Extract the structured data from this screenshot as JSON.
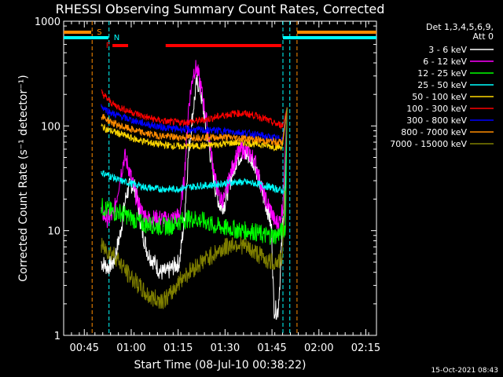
{
  "chart_data": {
    "type": "line",
    "title": "RHESSI Observing Summary Count Rates, Corrected",
    "xlabel": "Start Time (08-Jul-10 00:38:22)",
    "ylabel": "Corrected Count Rate (s⁻¹ detector⁻¹)",
    "yscale": "log",
    "ylim": [
      1,
      1000
    ],
    "xlim_minutes": [
      0,
      100
    ],
    "x_ticks": [
      {
        "t": 6.6,
        "label": "00:45"
      },
      {
        "t": 21.6,
        "label": "01:00"
      },
      {
        "t": 36.6,
        "label": "01:15"
      },
      {
        "t": 51.6,
        "label": "01:30"
      },
      {
        "t": 66.6,
        "label": "01:45"
      },
      {
        "t": 81.6,
        "label": "02:00"
      },
      {
        "t": 96.6,
        "label": "02:15"
      }
    ],
    "y_ticks": [
      {
        "v": 1,
        "label": "1"
      },
      {
        "v": 10,
        "label": "10"
      },
      {
        "v": 100,
        "label": "100"
      },
      {
        "v": 1000,
        "label": "1000"
      }
    ],
    "legend_header": [
      "Det 1,3,4,5,6,9,",
      "Att 0"
    ],
    "legend_position": "right",
    "series": [
      {
        "name": "3 - 6 keV",
        "color": "#ffffff",
        "points": [
          [
            12,
            5
          ],
          [
            14,
            4.5
          ],
          [
            16,
            5
          ],
          [
            18,
            9
          ],
          [
            20,
            22
          ],
          [
            21.5,
            28
          ],
          [
            23,
            25
          ],
          [
            25,
            10
          ],
          [
            27,
            6
          ],
          [
            29,
            5
          ],
          [
            31,
            4
          ],
          [
            33,
            4
          ],
          [
            35,
            4.5
          ],
          [
            37,
            5
          ],
          [
            38.5,
            12
          ],
          [
            40,
            60
          ],
          [
            41.5,
            150
          ],
          [
            42.5,
            260
          ],
          [
            43.5,
            240
          ],
          [
            45,
            120
          ],
          [
            47,
            50
          ],
          [
            48.5,
            25
          ],
          [
            50,
            17
          ],
          [
            51.5,
            18
          ],
          [
            53,
            28
          ],
          [
            55,
            45
          ],
          [
            57,
            55
          ],
          [
            59,
            52
          ],
          [
            61,
            45
          ],
          [
            62.5,
            30
          ],
          [
            64,
            20
          ],
          [
            65.5,
            15
          ],
          [
            66.5,
            10
          ],
          [
            67.2,
            1.8
          ],
          [
            68.5,
            1.7
          ],
          [
            69.3,
            4
          ],
          [
            70,
            12
          ],
          [
            70.6,
            14
          ],
          [
            71.4,
            150
          ]
        ]
      },
      {
        "name": "6 - 12 keV",
        "color": "#ff00ff",
        "points": [
          [
            12,
            15
          ],
          [
            14,
            13
          ],
          [
            16,
            14
          ],
          [
            18,
            32
          ],
          [
            19.5,
            52
          ],
          [
            21,
            38
          ],
          [
            23,
            22
          ],
          [
            25,
            15
          ],
          [
            27,
            13
          ],
          [
            29,
            13
          ],
          [
            31,
            13
          ],
          [
            33,
            12.5
          ],
          [
            35,
            13
          ],
          [
            37,
            14
          ],
          [
            38.5,
            30
          ],
          [
            40,
            160
          ],
          [
            41.5,
            330
          ],
          [
            42.5,
            360
          ],
          [
            43.5,
            270
          ],
          [
            45,
            150
          ],
          [
            47,
            60
          ],
          [
            48.5,
            30
          ],
          [
            50,
            20
          ],
          [
            51.5,
            20
          ],
          [
            53,
            32
          ],
          [
            55,
            50
          ],
          [
            57,
            60
          ],
          [
            59,
            56
          ],
          [
            61,
            48
          ],
          [
            62.5,
            32
          ],
          [
            64,
            22
          ],
          [
            65.5,
            17
          ],
          [
            66.5,
            15
          ],
          [
            67.5,
            12
          ],
          [
            69,
            12
          ],
          [
            70,
            17
          ],
          [
            71.4,
            150
          ]
        ]
      },
      {
        "name": "12 - 25 keV",
        "color": "#00ff00",
        "points": [
          [
            12,
            17
          ],
          [
            14,
            16
          ],
          [
            16,
            15
          ],
          [
            18,
            15
          ],
          [
            20,
            14
          ],
          [
            22,
            13
          ],
          [
            24,
            12
          ],
          [
            26,
            11.5
          ],
          [
            28,
            11.5
          ],
          [
            30,
            11
          ],
          [
            32,
            11
          ],
          [
            34,
            11
          ],
          [
            36,
            12
          ],
          [
            38,
            12.5
          ],
          [
            40,
            13
          ],
          [
            42,
            13
          ],
          [
            44,
            12.5
          ],
          [
            46,
            12
          ],
          [
            48,
            11
          ],
          [
            50,
            11
          ],
          [
            52,
            10.5
          ],
          [
            54,
            10.5
          ],
          [
            56,
            10
          ],
          [
            58,
            10
          ],
          [
            60,
            10
          ],
          [
            62,
            9.5
          ],
          [
            64,
            9
          ],
          [
            66,
            9
          ],
          [
            68,
            9
          ],
          [
            70,
            10
          ],
          [
            71,
            11
          ],
          [
            71.4,
            150
          ]
        ]
      },
      {
        "name": "25 - 50 keV",
        "color": "#00ffff",
        "points": [
          [
            12,
            36
          ],
          [
            14,
            34
          ],
          [
            16,
            32
          ],
          [
            18,
            30
          ],
          [
            20,
            29
          ],
          [
            22,
            28
          ],
          [
            24,
            27
          ],
          [
            26,
            26
          ],
          [
            28,
            25.5
          ],
          [
            30,
            25
          ],
          [
            32,
            25
          ],
          [
            34,
            25
          ],
          [
            36,
            25
          ],
          [
            38,
            25.5
          ],
          [
            40,
            26
          ],
          [
            42,
            26.5
          ],
          [
            44,
            27
          ],
          [
            46,
            27
          ],
          [
            48,
            27.5
          ],
          [
            50,
            28
          ],
          [
            52,
            28.5
          ],
          [
            54,
            29
          ],
          [
            56,
            29
          ],
          [
            58,
            29
          ],
          [
            60,
            28.5
          ],
          [
            62,
            28
          ],
          [
            64,
            27
          ],
          [
            66,
            26
          ],
          [
            68,
            25
          ],
          [
            70,
            24
          ],
          [
            71,
            25
          ],
          [
            71.4,
            150
          ]
        ]
      },
      {
        "name": "50 - 100 keV",
        "color": "#ffd700",
        "points": [
          [
            12,
            100
          ],
          [
            14,
            92
          ],
          [
            16,
            88
          ],
          [
            18,
            84
          ],
          [
            20,
            80
          ],
          [
            22,
            76
          ],
          [
            24,
            73
          ],
          [
            26,
            71
          ],
          [
            28,
            69
          ],
          [
            30,
            67
          ],
          [
            32,
            66
          ],
          [
            34,
            65
          ],
          [
            36,
            64
          ],
          [
            38,
            64
          ],
          [
            40,
            64
          ],
          [
            42,
            64
          ],
          [
            44,
            64.5
          ],
          [
            46,
            65
          ],
          [
            48,
            66
          ],
          [
            50,
            67
          ],
          [
            52,
            68
          ],
          [
            54,
            69
          ],
          [
            56,
            69
          ],
          [
            58,
            69
          ],
          [
            60,
            68
          ],
          [
            62,
            67
          ],
          [
            64,
            66
          ],
          [
            66,
            64
          ],
          [
            68,
            63
          ],
          [
            70,
            63
          ],
          [
            71.4,
            150
          ]
        ]
      },
      {
        "name": "100 - 300 keV",
        "color": "#ff0000",
        "points": [
          [
            12,
            210
          ],
          [
            14,
            180
          ],
          [
            16,
            160
          ],
          [
            18,
            150
          ],
          [
            20,
            142
          ],
          [
            22,
            135
          ],
          [
            24,
            128
          ],
          [
            26,
            122
          ],
          [
            28,
            118
          ],
          [
            30,
            114
          ],
          [
            32,
            111
          ],
          [
            34,
            109
          ],
          [
            36,
            108
          ],
          [
            38,
            108
          ],
          [
            40,
            109
          ],
          [
            42,
            111
          ],
          [
            44,
            113
          ],
          [
            46,
            116
          ],
          [
            48,
            120
          ],
          [
            50,
            124
          ],
          [
            52,
            128
          ],
          [
            54,
            131
          ],
          [
            56,
            132
          ],
          [
            58,
            131
          ],
          [
            60,
            128
          ],
          [
            62,
            124
          ],
          [
            64,
            118
          ],
          [
            66,
            110
          ],
          [
            68,
            104
          ],
          [
            70,
            102
          ],
          [
            71.4,
            150
          ]
        ]
      },
      {
        "name": "300 - 800 keV",
        "color": "#0000ff",
        "points": [
          [
            12,
            155
          ],
          [
            14,
            140
          ],
          [
            16,
            130
          ],
          [
            18,
            124
          ],
          [
            20,
            118
          ],
          [
            22,
            113
          ],
          [
            24,
            109
          ],
          [
            26,
            105
          ],
          [
            28,
            102
          ],
          [
            30,
            99
          ],
          [
            32,
            97
          ],
          [
            34,
            95
          ],
          [
            36,
            94
          ],
          [
            38,
            93
          ],
          [
            40,
            92
          ],
          [
            42,
            92
          ],
          [
            44,
            91
          ],
          [
            46,
            91
          ],
          [
            48,
            91
          ],
          [
            50,
            90
          ],
          [
            52,
            89
          ],
          [
            54,
            88
          ],
          [
            56,
            87
          ],
          [
            58,
            86
          ],
          [
            60,
            84
          ],
          [
            62,
            82
          ],
          [
            64,
            80
          ],
          [
            66,
            78
          ],
          [
            68,
            76
          ],
          [
            70,
            75
          ],
          [
            71.4,
            150
          ]
        ]
      },
      {
        "name": "800 - 7000 keV",
        "color": "#ff8c00",
        "points": [
          [
            12,
            125
          ],
          [
            14,
            114
          ],
          [
            16,
            106
          ],
          [
            18,
            100
          ],
          [
            20,
            96
          ],
          [
            22,
            92
          ],
          [
            24,
            88
          ],
          [
            26,
            85
          ],
          [
            28,
            83
          ],
          [
            30,
            81
          ],
          [
            32,
            80
          ],
          [
            34,
            79
          ],
          [
            36,
            78
          ],
          [
            38,
            78
          ],
          [
            40,
            78
          ],
          [
            42,
            78
          ],
          [
            44,
            78
          ],
          [
            46,
            78
          ],
          [
            48,
            78
          ],
          [
            50,
            78
          ],
          [
            52,
            78
          ],
          [
            54,
            77
          ],
          [
            56,
            77
          ],
          [
            58,
            76
          ],
          [
            60,
            75
          ],
          [
            62,
            74
          ],
          [
            64,
            72
          ],
          [
            66,
            71
          ],
          [
            68,
            70
          ],
          [
            70,
            70
          ],
          [
            71.4,
            150
          ]
        ]
      },
      {
        "name": "7000 - 15000 keV",
        "color": "#808000",
        "points": [
          [
            12,
            7
          ],
          [
            14,
            6.5
          ],
          [
            16,
            6
          ],
          [
            18,
            5
          ],
          [
            20,
            4
          ],
          [
            22,
            3.5
          ],
          [
            24,
            3
          ],
          [
            26,
            2.5
          ],
          [
            28,
            2.3
          ],
          [
            30,
            2.2
          ],
          [
            32,
            2.2
          ],
          [
            34,
            2.4
          ],
          [
            36,
            3
          ],
          [
            38,
            3.6
          ],
          [
            40,
            4
          ],
          [
            42,
            4.5
          ],
          [
            44,
            5
          ],
          [
            46,
            5.5
          ],
          [
            48,
            6
          ],
          [
            50,
            6.5
          ],
          [
            52,
            7
          ],
          [
            54,
            7.5
          ],
          [
            56,
            7.5
          ],
          [
            58,
            7
          ],
          [
            60,
            6.5
          ],
          [
            62,
            6
          ],
          [
            64,
            5.5
          ],
          [
            66,
            5
          ],
          [
            68,
            5
          ],
          [
            70,
            5.5
          ],
          [
            71.4,
            150
          ]
        ]
      }
    ],
    "markers": [
      {
        "label": "S",
        "color": "#ff8c00",
        "x_minutes": 9.1,
        "bars": [
          [
            0,
            8.8
          ],
          [
            74.6,
            100
          ]
        ]
      },
      {
        "label": "N",
        "color": "#00ffff",
        "x_minutes": 14.5,
        "bars": [
          [
            0,
            14.3
          ],
          [
            70.1,
            100
          ]
        ]
      },
      {
        "label": "F",
        "color": "#ff0000",
        "x_minutes": null,
        "bars": [
          [
            15.6,
            20.6
          ],
          [
            32.6,
            69.6
          ]
        ]
      }
    ],
    "markers_cyan_vertical": [
      14.5,
      70.1,
      72.3
    ],
    "markers_orange_vertical": [
      9.1,
      74.6
    ]
  },
  "footer": {
    "timestamp": "15-Oct-2021 08:43"
  }
}
